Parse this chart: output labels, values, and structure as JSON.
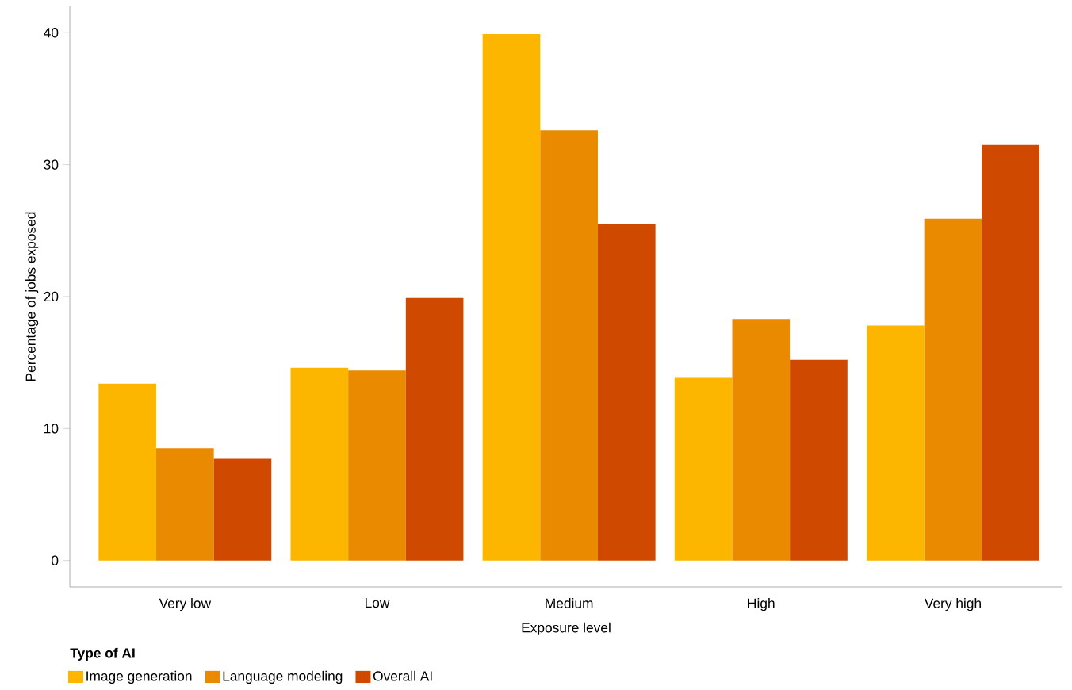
{
  "chart_data": {
    "type": "bar",
    "xlabel": "Exposure level",
    "ylabel": "Percentage of jobs exposed",
    "legend_title": "Type of AI",
    "categories": [
      "Very low",
      "Low",
      "Medium",
      "High",
      "Very high"
    ],
    "series": [
      {
        "name": "Image generation",
        "color": "#fdb600",
        "values": [
          13.4,
          14.6,
          39.9,
          13.9,
          17.8
        ]
      },
      {
        "name": "Language modeling",
        "color": "#e98a00",
        "values": [
          8.5,
          14.4,
          32.6,
          18.3,
          25.9
        ]
      },
      {
        "name": "Overall AI",
        "color": "#cf4a00",
        "values": [
          7.7,
          19.9,
          25.5,
          15.2,
          31.5
        ]
      }
    ],
    "ylim": [
      -2,
      42
    ],
    "yticks": [
      0,
      10,
      20,
      30,
      40
    ],
    "grid": false,
    "legend": "bottom left"
  }
}
